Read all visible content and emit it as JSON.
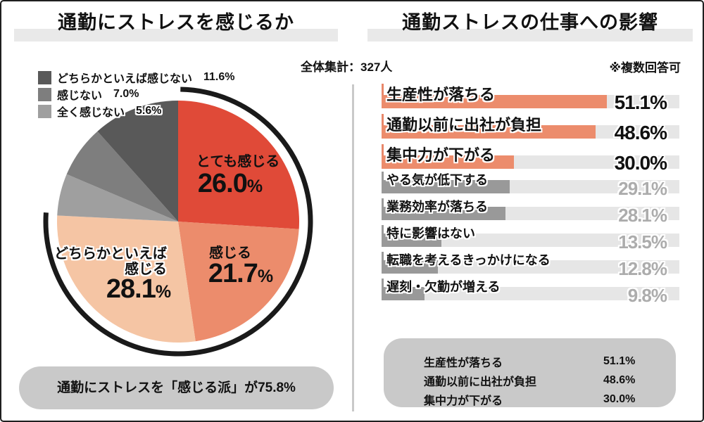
{
  "page": {
    "bg": "#FFFFFF",
    "frame_color": "#1F1F1F"
  },
  "chart_data": [
    {
      "type": "pie",
      "title": "通勤にストレスを感じるか",
      "pct_unit": "%",
      "slices": [
        {
          "label": "とても感じる",
          "value": 26.0,
          "display": "26.0",
          "color": "#E04A38"
        },
        {
          "label": "感じる",
          "value": 21.7,
          "display": "21.7",
          "color": "#EC8C6C"
        },
        {
          "label": "どちらかといえば感じる",
          "value": 28.1,
          "display": "28.1",
          "color": "#F5C5A4",
          "label_lines": [
            "どちらかといえば",
            "感じる"
          ]
        },
        {
          "label": "全く感じない",
          "value": 5.6,
          "color": "#9F9F9F"
        },
        {
          "label": "感じない",
          "value": 7.0,
          "color": "#7E7E7E"
        },
        {
          "label": "どちらかといえば感じない",
          "value": 11.6,
          "color": "#595959"
        }
      ],
      "legend": [
        {
          "label": "どちらかといえば感じない",
          "pct": "11.6%",
          "color": "#595959"
        },
        {
          "label": "感じない",
          "pct": "7.0%",
          "color": "#7E7E7E"
        },
        {
          "label": "全く感じない",
          "pct": "5.6%",
          "color": "#9F9F9F"
        }
      ],
      "outer_arc": {
        "pct": 75.8,
        "start_deg": 1,
        "color": "#1A1A1A"
      }
    },
    {
      "type": "bar",
      "title": "通勤ストレスの仕事への影響",
      "highlight_color": "#EC8C6C",
      "bar_color": "#999999",
      "track_color": "#E6E6E6",
      "tick_highlight_color": "#E8876A",
      "tick_color": "#9A9A9A",
      "items": [
        {
          "label": "生産性が落ちる",
          "value": 51.1,
          "display": "51.1%",
          "highlight": true
        },
        {
          "label": "通勤以前に出社が負担",
          "value": 48.6,
          "display": "48.6%",
          "highlight": true
        },
        {
          "label": "集中力が下がる",
          "value": 30.0,
          "display": "30.0%",
          "highlight": true
        },
        {
          "label": "やる気が低下する",
          "value": 29.1,
          "display": "29.1%",
          "highlight": false
        },
        {
          "label": "業務効率が落ちる",
          "value": 28.1,
          "display": "28.1%",
          "highlight": false
        },
        {
          "label": "特に影響はない",
          "value": 13.5,
          "display": "13.5%",
          "highlight": false
        },
        {
          "label": "転職を考えるきっかけになる",
          "value": 12.8,
          "display": "12.8%",
          "highlight": false
        },
        {
          "label": "遅刻・欠勤が増える",
          "value": 9.8,
          "display": "9.8%",
          "highlight": false
        }
      ]
    }
  ],
  "left_panel": {
    "footer": "通勤にストレスを「感じる派」が75.8%"
  },
  "right_panel": {
    "total_note": "全体集計：327人",
    "multi_note": "※複数回答可",
    "summary": [
      {
        "label": "生産性が落ちる",
        "pct": "51.1%"
      },
      {
        "label": "通勤以前に出社が負担",
        "pct": "48.6%"
      },
      {
        "label": "集中力が下がる",
        "pct": "30.0%"
      }
    ]
  }
}
